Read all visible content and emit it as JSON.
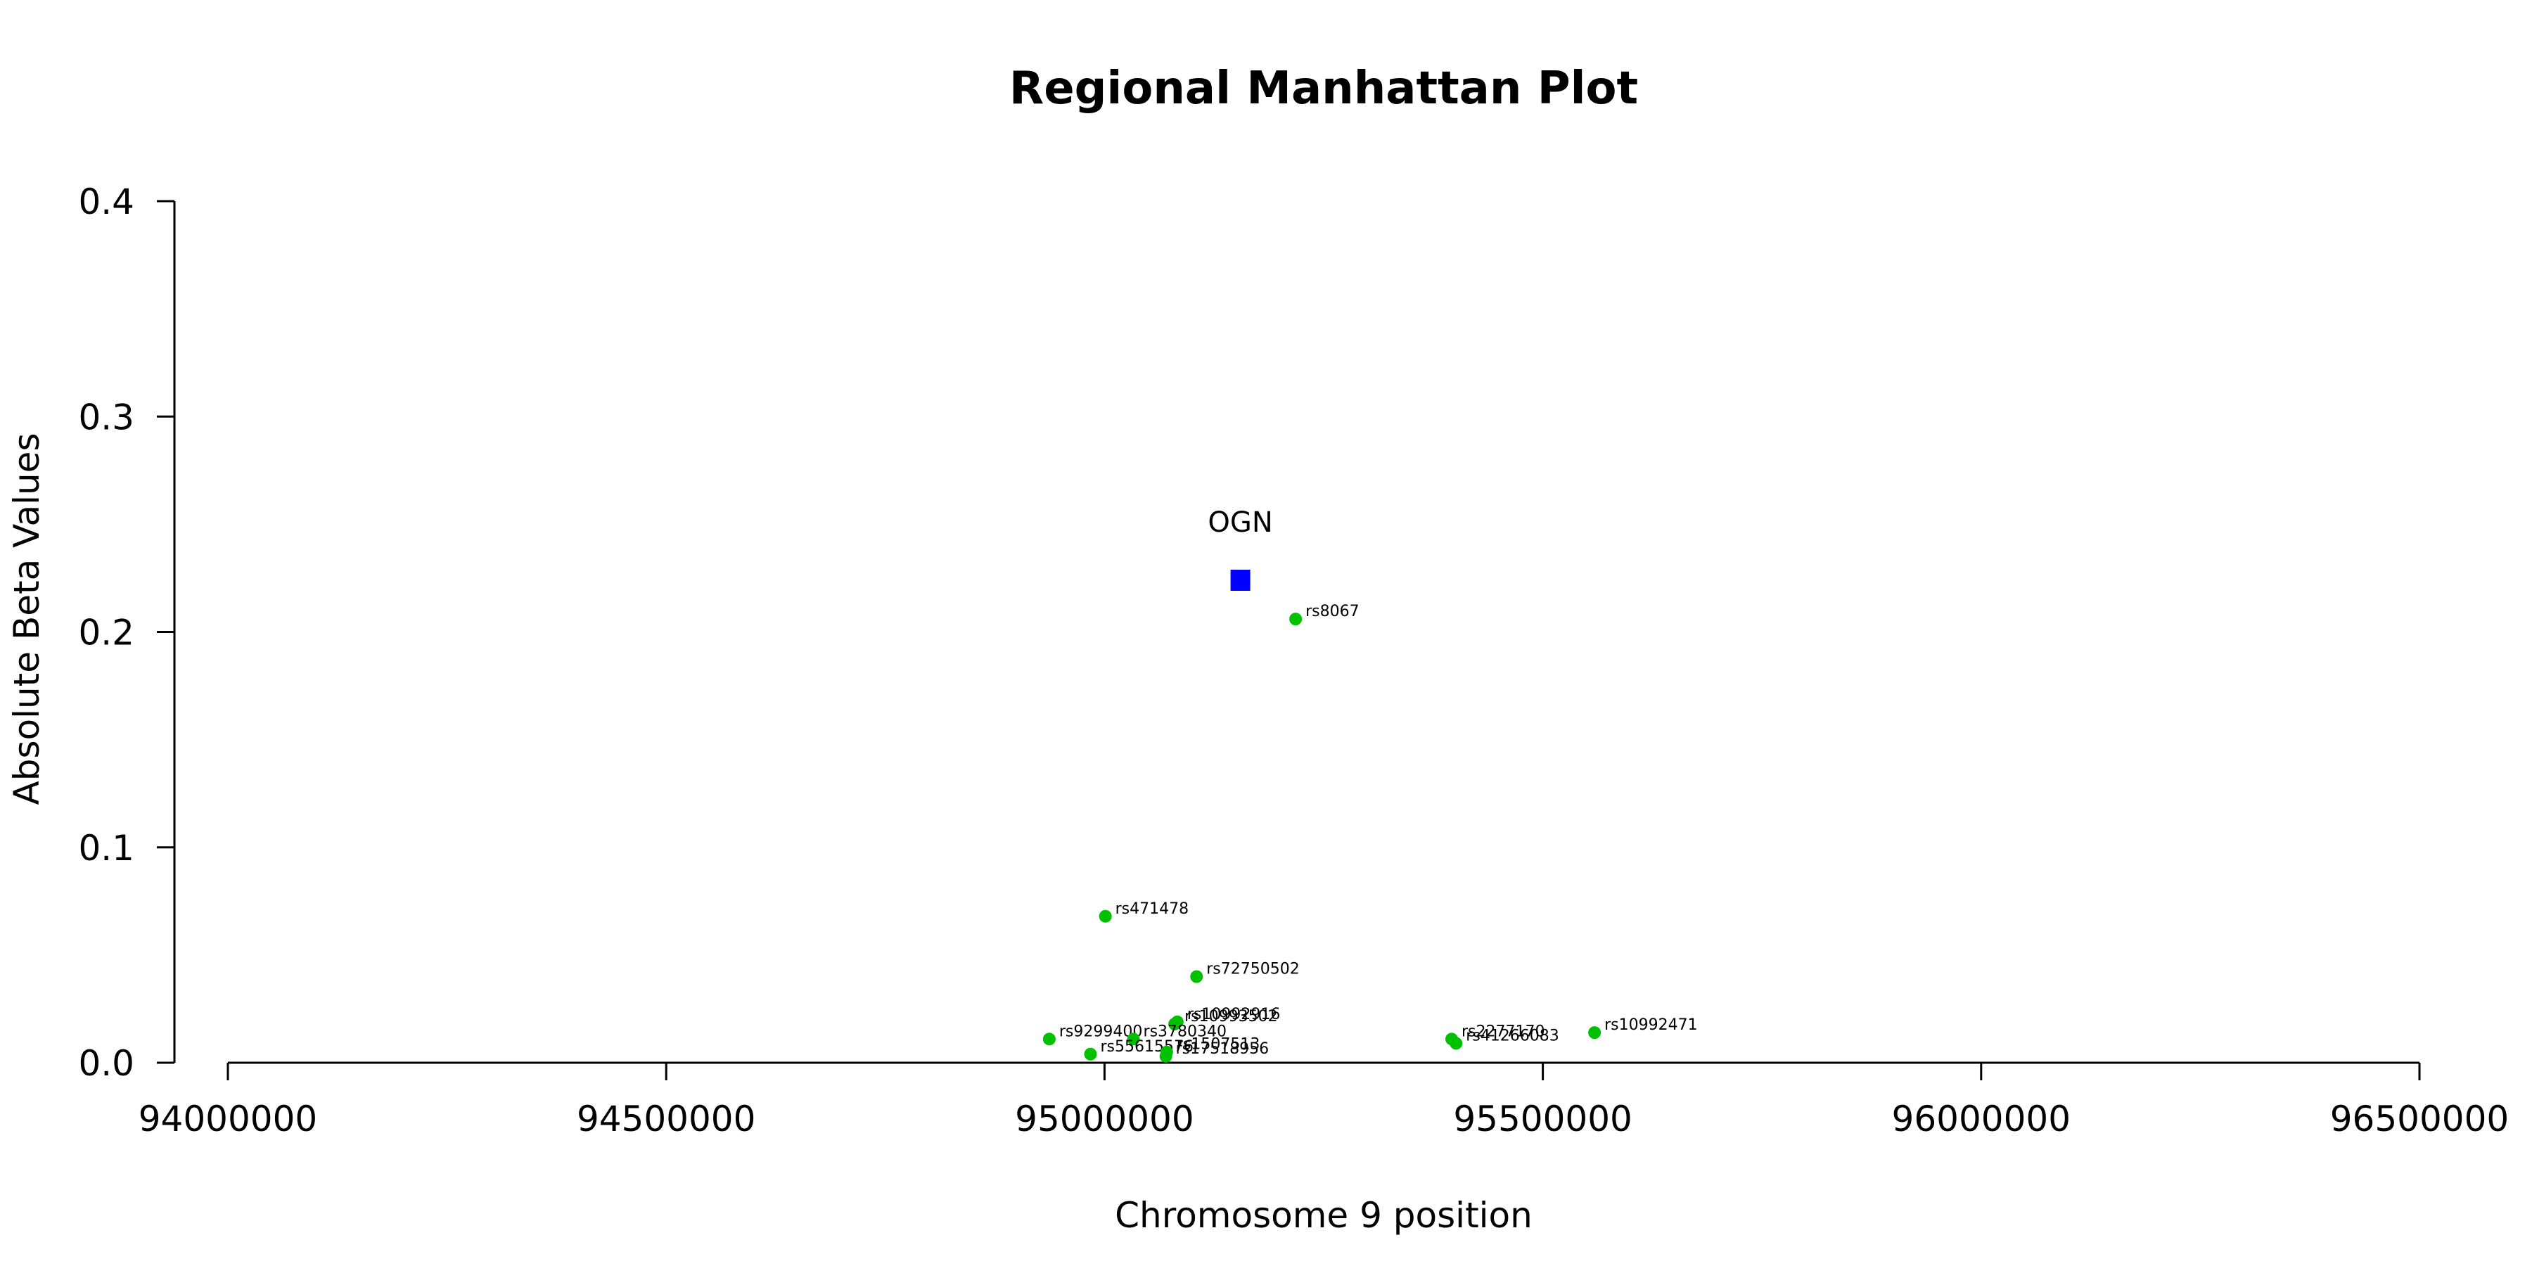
{
  "chart_data": {
    "type": "scatter",
    "title": "Regional Manhattan Plot",
    "xlabel": "Chromosome 9 position",
    "ylabel": "Absolute Beta Values",
    "xlim": [
      94000000,
      96500000
    ],
    "ylim": [
      0,
      0.4
    ],
    "x_ticks": [
      "94000000",
      "94500000",
      "95000000",
      "95500000",
      "96000000",
      "96500000"
    ],
    "y_ticks": [
      "0.0",
      "0.1",
      "0.2",
      "0.3",
      "0.4"
    ],
    "grid": false,
    "point_color": "#00c000",
    "gene_color": "#0000ff",
    "gene": {
      "name": "OGN",
      "x": 95155000,
      "y": 0.224
    },
    "points": [
      {
        "label": "rs8067",
        "x": 95218000,
        "y": 0.206
      },
      {
        "label": "rs471478",
        "x": 95001000,
        "y": 0.068
      },
      {
        "label": "rs72750502",
        "x": 95105000,
        "y": 0.04
      },
      {
        "label": "rs10992916",
        "x": 95083000,
        "y": 0.019
      },
      {
        "label": "rs10993502",
        "x": 95080000,
        "y": 0.018
      },
      {
        "label": "rs9299400",
        "x": 94937000,
        "y": 0.011
      },
      {
        "label": "rs3780340",
        "x": 95033000,
        "y": 0.011
      },
      {
        "label": "rs55615576",
        "x": 94984000,
        "y": 0.004
      },
      {
        "label": "rs1507513",
        "x": 95071000,
        "y": 0.005
      },
      {
        "label": "rs17518956",
        "x": 95070000,
        "y": 0.003
      },
      {
        "label": "rs2277170",
        "x": 95396000,
        "y": 0.011
      },
      {
        "label": "rs41266083",
        "x": 95401000,
        "y": 0.009
      },
      {
        "label": "rs10992471",
        "x": 95559000,
        "y": 0.014
      }
    ]
  }
}
